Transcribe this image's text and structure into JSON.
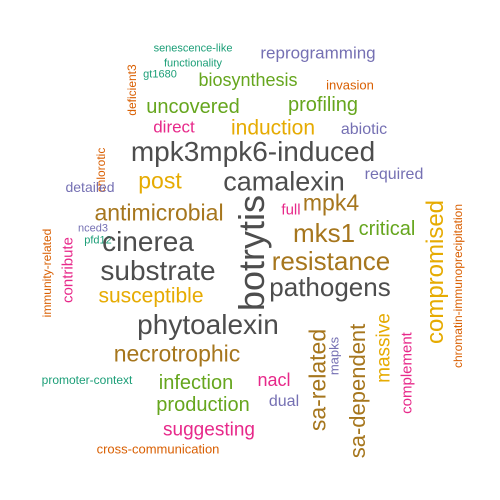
{
  "colors": {
    "green": "#1b9e77",
    "orange": "#d95f02",
    "purple": "#7570b3",
    "magenta": "#e7298a",
    "olive": "#66a61e",
    "gold": "#e6ab02",
    "brown": "#a6761d",
    "gray": "#4d4d4d"
  },
  "words": [
    {
      "text": "senescence-like",
      "color": "#1b9e77",
      "weight": 1
    },
    {
      "text": "reprogramming",
      "color": "#7570b3",
      "weight": 2
    },
    {
      "text": "functionality",
      "color": "#1b9e77",
      "weight": 1
    },
    {
      "text": "deficient3",
      "color": "#d95f02",
      "weight": 1,
      "vertical": true
    },
    {
      "text": "gt1680",
      "color": "#1b9e77",
      "weight": 1
    },
    {
      "text": "biosynthesis",
      "color": "#66a61e",
      "weight": 3
    },
    {
      "text": "invasion",
      "color": "#d95f02",
      "weight": 1
    },
    {
      "text": "uncovered",
      "color": "#66a61e",
      "weight": 3
    },
    {
      "text": "profiling",
      "color": "#66a61e",
      "weight": 3
    },
    {
      "text": "direct",
      "color": "#e7298a",
      "weight": 2
    },
    {
      "text": "induction",
      "color": "#e6ab02",
      "weight": 3
    },
    {
      "text": "abiotic",
      "color": "#7570b3",
      "weight": 2
    },
    {
      "text": "chlorotic",
      "color": "#d95f02",
      "weight": 1,
      "vertical": true
    },
    {
      "text": "mpk3mpk6-induced",
      "color": "#4d4d4d",
      "weight": 5
    },
    {
      "text": "post",
      "color": "#e6ab02",
      "weight": 4
    },
    {
      "text": "camalexin",
      "color": "#4d4d4d",
      "weight": 5
    },
    {
      "text": "required",
      "color": "#7570b3",
      "weight": 2
    },
    {
      "text": "detailed",
      "color": "#7570b3",
      "weight": 2
    },
    {
      "text": "chromatin-immunoprecipitation",
      "color": "#d95f02",
      "weight": 1,
      "vertical": true
    },
    {
      "text": "botrytis",
      "color": "#4d4d4d",
      "weight": 5,
      "vertical": true
    },
    {
      "text": "mpk4",
      "color": "#a6761d",
      "weight": 4
    },
    {
      "text": "antimicrobial",
      "color": "#a6761d",
      "weight": 4
    },
    {
      "text": "full",
      "color": "#e7298a",
      "weight": 2
    },
    {
      "text": "compromised",
      "color": "#e6ab02",
      "weight": 4,
      "vertical": true
    },
    {
      "text": "nced3",
      "color": "#7570b3",
      "weight": 1
    },
    {
      "text": "mks1",
      "color": "#a6761d",
      "weight": 5
    },
    {
      "text": "critical",
      "color": "#66a61e",
      "weight": 3
    },
    {
      "text": "immunity-related",
      "color": "#d95f02",
      "weight": 1,
      "vertical": true
    },
    {
      "text": "pfd12",
      "color": "#1b9e77",
      "weight": 1
    },
    {
      "text": "cinerea",
      "color": "#4d4d4d",
      "weight": 5
    },
    {
      "text": "contribute",
      "color": "#e7298a",
      "weight": 2,
      "vertical": true
    },
    {
      "text": "substrate",
      "color": "#4d4d4d",
      "weight": 5
    },
    {
      "text": "resistance",
      "color": "#a6761d",
      "weight": 5
    },
    {
      "text": "pathogens",
      "color": "#4d4d4d",
      "weight": 5
    },
    {
      "text": "susceptible",
      "color": "#e6ab02",
      "weight": 4
    },
    {
      "text": "phytoalexin",
      "color": "#4d4d4d",
      "weight": 5
    },
    {
      "text": "sa-related",
      "color": "#a6761d",
      "weight": 4,
      "vertical": true
    },
    {
      "text": "sa-dependent",
      "color": "#a6761d",
      "weight": 4,
      "vertical": true
    },
    {
      "text": "massive",
      "color": "#e6ab02",
      "weight": 3,
      "vertical": true
    },
    {
      "text": "complement",
      "color": "#e7298a",
      "weight": 2,
      "vertical": true
    },
    {
      "text": "mapks",
      "color": "#7570b3",
      "weight": 2,
      "vertical": true
    },
    {
      "text": "necrotrophic",
      "color": "#a6761d",
      "weight": 4
    },
    {
      "text": "promoter-context",
      "color": "#1b9e77",
      "weight": 1
    },
    {
      "text": "nacl",
      "color": "#e7298a",
      "weight": 3
    },
    {
      "text": "infection",
      "color": "#66a61e",
      "weight": 3
    },
    {
      "text": "production",
      "color": "#66a61e",
      "weight": 3
    },
    {
      "text": "dual",
      "color": "#7570b3",
      "weight": 2
    },
    {
      "text": "suggesting",
      "color": "#e7298a",
      "weight": 3
    },
    {
      "text": "cross-communication",
      "color": "#d95f02",
      "weight": 1
    }
  ]
}
